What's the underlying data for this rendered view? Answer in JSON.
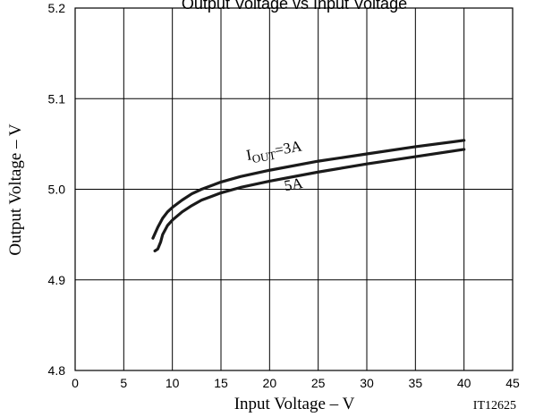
{
  "chart_data": {
    "type": "line",
    "title": "Output Voltage vs Input Voltage",
    "xlabel": "Input Voltage  –  V",
    "ylabel": "Output Voltage  –  V",
    "xlim": [
      0,
      45
    ],
    "ylim": [
      4.8,
      5.2
    ],
    "x_ticks": [
      "0",
      "5",
      "10",
      "15",
      "20",
      "25",
      "30",
      "35",
      "40",
      "45"
    ],
    "y_ticks": [
      "4.8",
      "4.9",
      "5.0",
      "5.1",
      "5.2"
    ],
    "grid": true,
    "figure_code": "IT12625",
    "series": [
      {
        "name": "IOUT=3A",
        "label_main": "I",
        "label_sub": "OUT",
        "label_tail": "=3A",
        "x": [
          8,
          8.5,
          9,
          9.5,
          10,
          11,
          12,
          13,
          14,
          15,
          17,
          20,
          25,
          30,
          35,
          40
        ],
        "y": [
          4.946,
          4.958,
          4.968,
          4.975,
          4.98,
          4.988,
          4.995,
          5.0,
          5.004,
          5.008,
          5.014,
          5.021,
          5.031,
          5.039,
          5.047,
          5.054
        ]
      },
      {
        "name": "5A",
        "label_main": "5A",
        "x": [
          8.2,
          8.5,
          8.8,
          9,
          9.5,
          10,
          11,
          12,
          13,
          14,
          15,
          17,
          20,
          25,
          30,
          35,
          40
        ],
        "y": [
          4.932,
          4.934,
          4.942,
          4.95,
          4.96,
          4.966,
          4.975,
          4.982,
          4.988,
          4.992,
          4.996,
          5.002,
          5.009,
          5.019,
          5.028,
          5.036,
          5.044
        ]
      }
    ]
  }
}
